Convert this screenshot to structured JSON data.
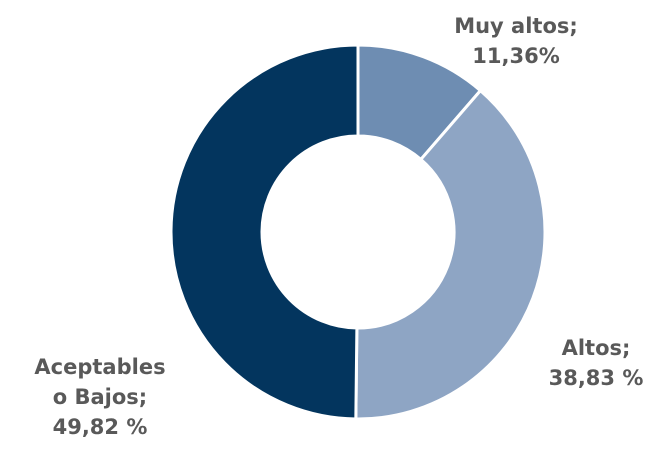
{
  "chart_data": {
    "type": "pie",
    "variant": "donut",
    "start_angle_deg": 0,
    "direction": "clockwise",
    "slices": [
      {
        "label_lines": [
          "Muy altos;",
          "11,36%"
        ],
        "value": 11.36,
        "color": "#6e8db2"
      },
      {
        "label_lines": [
          "Altos;",
          "38,83 %"
        ],
        "value": 38.83,
        "color": "#8ea5c4"
      },
      {
        "label_lines": [
          "Aceptables",
          "o Bajos;",
          "49,82 %"
        ],
        "value": 49.82,
        "color": "#03355e"
      }
    ],
    "separator_color": "#ffffff",
    "label_color": "#595959",
    "legend": "none"
  }
}
